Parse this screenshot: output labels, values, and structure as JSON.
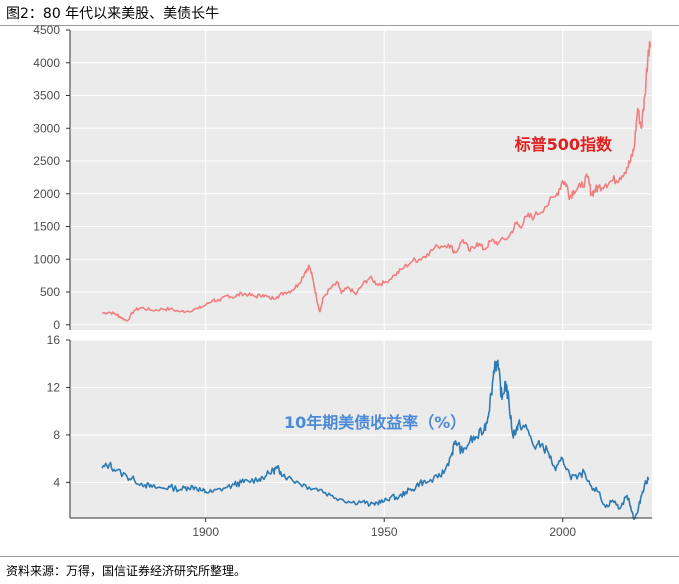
{
  "figure": {
    "title": "图2：80 年代以来美股、美债长牛",
    "source": "资料来源：万得，国信证券经济研究所整理。"
  },
  "colors": {
    "sp500": "#f08080",
    "sp500_label": "#e02020",
    "yield": "#2e7bb4",
    "yield_label": "#4d8ad6",
    "panel_bg": "#ebebeb",
    "grid": "#ffffff"
  },
  "chart_data": [
    {
      "type": "line",
      "name": "sp500_panel",
      "annotation": "标普500指数",
      "xlim": [
        1862,
        2025
      ],
      "ylim": [
        -80,
        4500
      ],
      "y_ticks": [
        0,
        500,
        1000,
        1500,
        2000,
        2500,
        3000,
        3500,
        4000,
        4500
      ],
      "x_ticks": [
        1900,
        1950,
        2000
      ],
      "grid": true,
      "series": [
        {
          "x": [
            1871,
            1873,
            1875,
            1876,
            1878,
            1880,
            1882,
            1885,
            1888,
            1890,
            1893,
            1895,
            1898,
            1900,
            1902,
            1904,
            1906,
            1908,
            1910,
            1912,
            1914,
            1916,
            1918,
            1920,
            1922,
            1924,
            1926,
            1928,
            1929,
            1930,
            1931,
            1932,
            1933,
            1935,
            1937,
            1938,
            1940,
            1942,
            1944,
            1946,
            1948,
            1950,
            1953,
            1955,
            1958,
            1960,
            1962,
            1965,
            1968,
            1970,
            1972,
            1974,
            1976,
            1978,
            1980,
            1982,
            1985,
            1987,
            1988,
            1990,
            1992,
            1995,
            1998,
            2000,
            2001,
            2002,
            2003,
            2005,
            2007,
            2008,
            2009,
            2010,
            2012,
            2014,
            2016,
            2018,
            2019,
            2020,
            2021,
            2022,
            2023,
            2024,
            2024.5
          ],
          "y": [
            180,
            190,
            160,
            120,
            60,
            220,
            260,
            220,
            240,
            240,
            200,
            210,
            250,
            300,
            380,
            360,
            450,
            420,
            480,
            460,
            430,
            460,
            400,
            430,
            490,
            520,
            620,
            820,
            900,
            700,
            420,
            200,
            420,
            560,
            640,
            480,
            570,
            460,
            620,
            720,
            620,
            640,
            760,
            850,
            980,
            1000,
            1080,
            1200,
            1230,
            1100,
            1300,
            1120,
            1250,
            1150,
            1280,
            1250,
            1350,
            1550,
            1500,
            1650,
            1650,
            1800,
            1960,
            2200,
            2150,
            1950,
            2050,
            2100,
            2250,
            2000,
            2050,
            2100,
            2150,
            2200,
            2250,
            2400,
            2500,
            2700,
            3300,
            3000,
            3500,
            4200,
            4300
          ]
        }
      ]
    },
    {
      "type": "line",
      "name": "yield_panel",
      "annotation": "10年期美债收益率（%）",
      "xlim": [
        1862,
        2025
      ],
      "ylim": [
        1,
        16
      ],
      "y_ticks": [
        4,
        8,
        12,
        16
      ],
      "x_ticks": [
        1900,
        1950,
        2000
      ],
      "grid": true,
      "series": [
        {
          "x": [
            1871,
            1873,
            1875,
            1878,
            1880,
            1883,
            1885,
            1888,
            1890,
            1893,
            1895,
            1897,
            1899,
            1900,
            1902,
            1905,
            1908,
            1910,
            1912,
            1915,
            1917,
            1919,
            1920,
            1921,
            1923,
            1926,
            1929,
            1932,
            1935,
            1938,
            1941,
            1944,
            1946,
            1948,
            1950,
            1952,
            1954,
            1956,
            1958,
            1960,
            1962,
            1965,
            1967,
            1969,
            1970,
            1972,
            1974,
            1976,
            1978,
            1979,
            1980,
            1981,
            1982,
            1983,
            1984,
            1985,
            1986,
            1987,
            1988,
            1990,
            1992,
            1994,
            1996,
            1998,
            2000,
            2002,
            2004,
            2006,
            2008,
            2010,
            2012,
            2014,
            2016,
            2018,
            2019,
            2020,
            2021,
            2022,
            2023,
            2024
          ],
          "y": [
            5.2,
            5.5,
            5.0,
            4.5,
            4.2,
            3.8,
            3.6,
            3.5,
            3.6,
            3.4,
            3.6,
            3.6,
            3.3,
            3.2,
            3.2,
            3.5,
            3.8,
            4.0,
            4.1,
            4.3,
            4.6,
            5.0,
            5.2,
            4.9,
            4.4,
            4.0,
            3.6,
            3.4,
            2.9,
            2.6,
            2.3,
            2.4,
            2.1,
            2.3,
            2.4,
            2.8,
            2.7,
            3.2,
            3.4,
            4.0,
            4.0,
            4.4,
            5.0,
            6.5,
            7.5,
            6.5,
            7.5,
            7.8,
            8.5,
            9.5,
            11.5,
            14.2,
            13.5,
            11.0,
            12.5,
            10.5,
            8.0,
            8.5,
            8.9,
            8.5,
            7.0,
            7.2,
            6.5,
            5.0,
            6.0,
            4.6,
            4.3,
            4.9,
            3.7,
            3.2,
            1.9,
            2.5,
            1.8,
            2.9,
            2.0,
            0.9,
            1.5,
            2.9,
            3.9,
            4.2
          ]
        }
      ]
    }
  ]
}
